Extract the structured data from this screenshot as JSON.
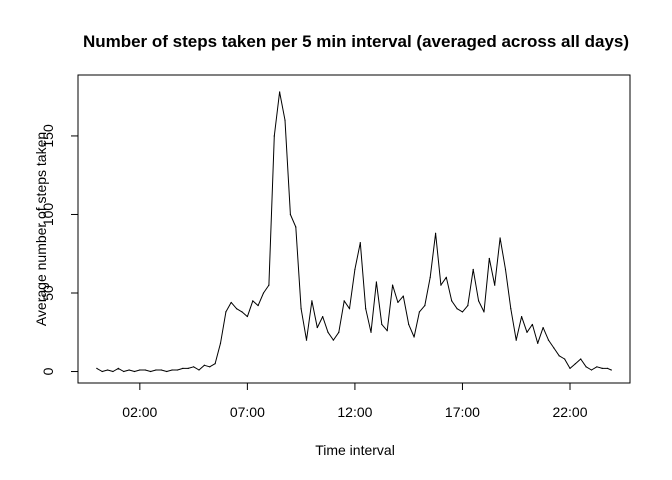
{
  "chart_data": {
    "type": "line",
    "title": "Number of steps taken per 5 min interval (averaged across all days)",
    "xlabel": "Time interval",
    "ylabel": "Average number of steps taken",
    "x_unit": "hour of day",
    "xlim": [
      -0.875,
      24.79
    ],
    "ylim": [
      -7.3,
      188.8
    ],
    "x_ticks": [
      {
        "value": 2,
        "label": "02:00"
      },
      {
        "value": 7,
        "label": "07:00"
      },
      {
        "value": 12,
        "label": "12:00"
      },
      {
        "value": 17,
        "label": "17:00"
      },
      {
        "value": 22,
        "label": "22:00"
      }
    ],
    "y_ticks": [
      {
        "value": 0,
        "label": "0"
      },
      {
        "value": 50,
        "label": "50"
      },
      {
        "value": 100,
        "label": "100"
      },
      {
        "value": 150,
        "label": "150"
      }
    ],
    "grid": false,
    "series": [
      {
        "color": "#000000",
        "x": [
          0.0,
          0.25,
          0.5,
          0.75,
          1.0,
          1.25,
          1.5,
          1.75,
          2.0,
          2.25,
          2.5,
          2.75,
          3.0,
          3.25,
          3.5,
          3.75,
          4.0,
          4.25,
          4.5,
          4.75,
          5.0,
          5.25,
          5.5,
          5.75,
          6.0,
          6.25,
          6.5,
          6.75,
          7.0,
          7.25,
          7.5,
          7.75,
          8.0,
          8.25,
          8.5,
          8.75,
          9.0,
          9.25,
          9.5,
          9.75,
          10.0,
          10.25,
          10.5,
          10.75,
          11.0,
          11.25,
          11.5,
          11.75,
          12.0,
          12.25,
          12.5,
          12.75,
          13.0,
          13.25,
          13.5,
          13.75,
          14.0,
          14.25,
          14.5,
          14.75,
          15.0,
          15.25,
          15.5,
          15.75,
          16.0,
          16.25,
          16.5,
          16.75,
          17.0,
          17.25,
          17.5,
          17.75,
          18.0,
          18.25,
          18.5,
          18.75,
          19.0,
          19.25,
          19.5,
          19.75,
          20.0,
          20.25,
          20.5,
          20.75,
          21.0,
          21.25,
          21.5,
          21.75,
          22.0,
          22.25,
          22.5,
          22.75,
          23.0,
          23.25,
          23.5,
          23.75,
          23.92
        ],
        "y": [
          2,
          0,
          1,
          0,
          2,
          0,
          1,
          0,
          1,
          1,
          0,
          1,
          1,
          0,
          1,
          1,
          2,
          2,
          3,
          1,
          4,
          3,
          5,
          18,
          38,
          44,
          40,
          38,
          35,
          45,
          42,
          50,
          55,
          150,
          178,
          160,
          100,
          92,
          40,
          20,
          45,
          28,
          35,
          25,
          20,
          25,
          45,
          40,
          65,
          82,
          40,
          25,
          57,
          30,
          26,
          55,
          44,
          48,
          30,
          22,
          38,
          42,
          60,
          88,
          55,
          60,
          45,
          40,
          38,
          42,
          65,
          45,
          38,
          72,
          55,
          85,
          65,
          40,
          20,
          35,
          25,
          30,
          18,
          28,
          20,
          15,
          10,
          8,
          2,
          5,
          8,
          3,
          1,
          3,
          2,
          2,
          1
        ]
      }
    ]
  }
}
